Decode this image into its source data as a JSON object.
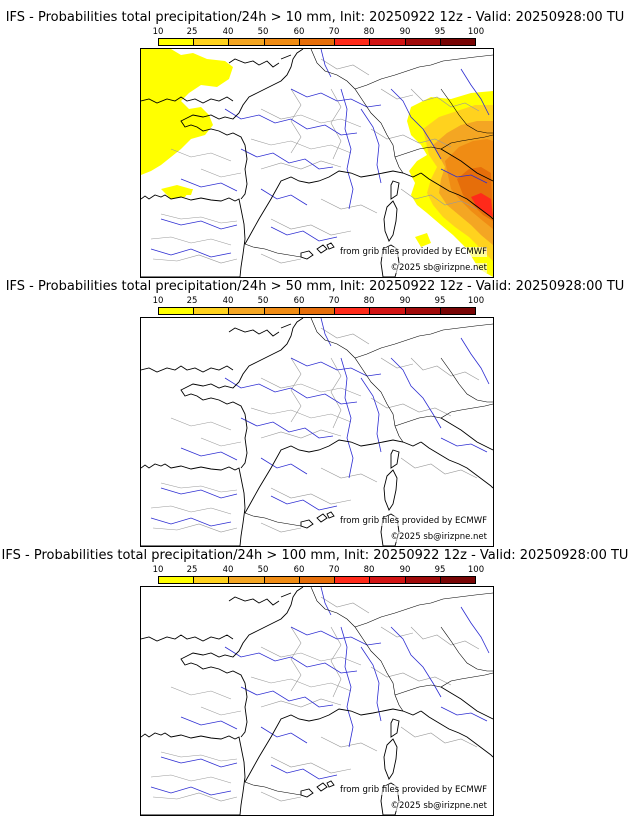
{
  "legend": {
    "ticks": [
      "10",
      "25",
      "40",
      "50",
      "60",
      "70",
      "80",
      "90",
      "95",
      "100"
    ],
    "colors": [
      "#ffff00",
      "#ffd21e",
      "#f4a623",
      "#f08c14",
      "#e66e0a",
      "#ff2a1a",
      "#d21414",
      "#a00a0a",
      "#780505",
      "#4b0000"
    ]
  },
  "panels": [
    {
      "title": "IFS - Probabilities total precipitation/24h > 10 mm, Init: 20250922 12z - Valid: 20250928:00 TU",
      "source_credit": "from grib files provided by ECMWF",
      "copyright": "©2025 sb@irizpne.net",
      "has_precip": true
    },
    {
      "title": "IFS - Probabilities total precipitation/24h > 50 mm, Init: 20250922 12z - Valid: 20250928:00 TU",
      "source_credit": "from grib files provided by ECMWF",
      "copyright": "©2025 sb@irizpne.net",
      "has_precip": false
    },
    {
      "title": "IFS - Probabilities total precipitation/24h > 100 mm, Init: 20250922 12z - Valid: 20250928:00 TU",
      "source_credit": "from grib files provided by ECMWF",
      "copyright": "©2025 sb@irizpne.net",
      "has_precip": false
    }
  ]
}
